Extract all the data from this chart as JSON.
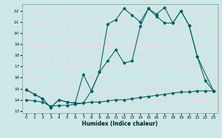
{
  "xlabel": "Humidex (Indice chaleur)",
  "xlim": [
    -0.5,
    23.5
  ],
  "ylim": [
    12.8,
    22.6
  ],
  "yticks": [
    13,
    14,
    15,
    16,
    17,
    18,
    19,
    20,
    21,
    22
  ],
  "xticks": [
    0,
    1,
    2,
    3,
    4,
    5,
    6,
    7,
    8,
    9,
    10,
    11,
    12,
    13,
    14,
    15,
    16,
    17,
    18,
    19,
    20,
    21,
    22,
    23
  ],
  "bg_color": "#cce8e8",
  "grid_color": "#e8d8d8",
  "line_color": "#006060",
  "line1_x": [
    0,
    1,
    2,
    3,
    4,
    5,
    6,
    7,
    8,
    9,
    10,
    11,
    12,
    13,
    14,
    15,
    16,
    17,
    18,
    19,
    20,
    21,
    23
  ],
  "line1_y": [
    14.9,
    14.5,
    14.1,
    13.3,
    14.0,
    13.8,
    13.7,
    13.7,
    14.8,
    16.5,
    17.5,
    18.5,
    17.3,
    17.5,
    20.6,
    22.2,
    21.7,
    22.3,
    20.9,
    22.0,
    20.7,
    17.9,
    14.8
  ],
  "line2_x": [
    0,
    1,
    2,
    3,
    4,
    5,
    6,
    7,
    8,
    9,
    10,
    11,
    12,
    13,
    14,
    15,
    16,
    17,
    18,
    19,
    20,
    21,
    22,
    23
  ],
  "line2_y": [
    14.9,
    14.5,
    14.1,
    13.3,
    14.0,
    13.8,
    13.7,
    16.3,
    14.8,
    16.5,
    20.8,
    21.2,
    22.2,
    21.6,
    21.0,
    22.2,
    21.5,
    20.9,
    20.9,
    22.0,
    20.7,
    17.9,
    15.7,
    14.8
  ],
  "line3_x": [
    0,
    1,
    2,
    3,
    4,
    5,
    6,
    7,
    8,
    9,
    10,
    11,
    12,
    13,
    14,
    15,
    16,
    17,
    18,
    19,
    20,
    21,
    22,
    23
  ],
  "line3_y": [
    14.0,
    13.9,
    13.8,
    13.4,
    13.5,
    13.5,
    13.6,
    13.7,
    13.8,
    13.8,
    13.9,
    14.0,
    14.0,
    14.1,
    14.2,
    14.3,
    14.4,
    14.5,
    14.6,
    14.7,
    14.7,
    14.8,
    14.8,
    14.8
  ]
}
